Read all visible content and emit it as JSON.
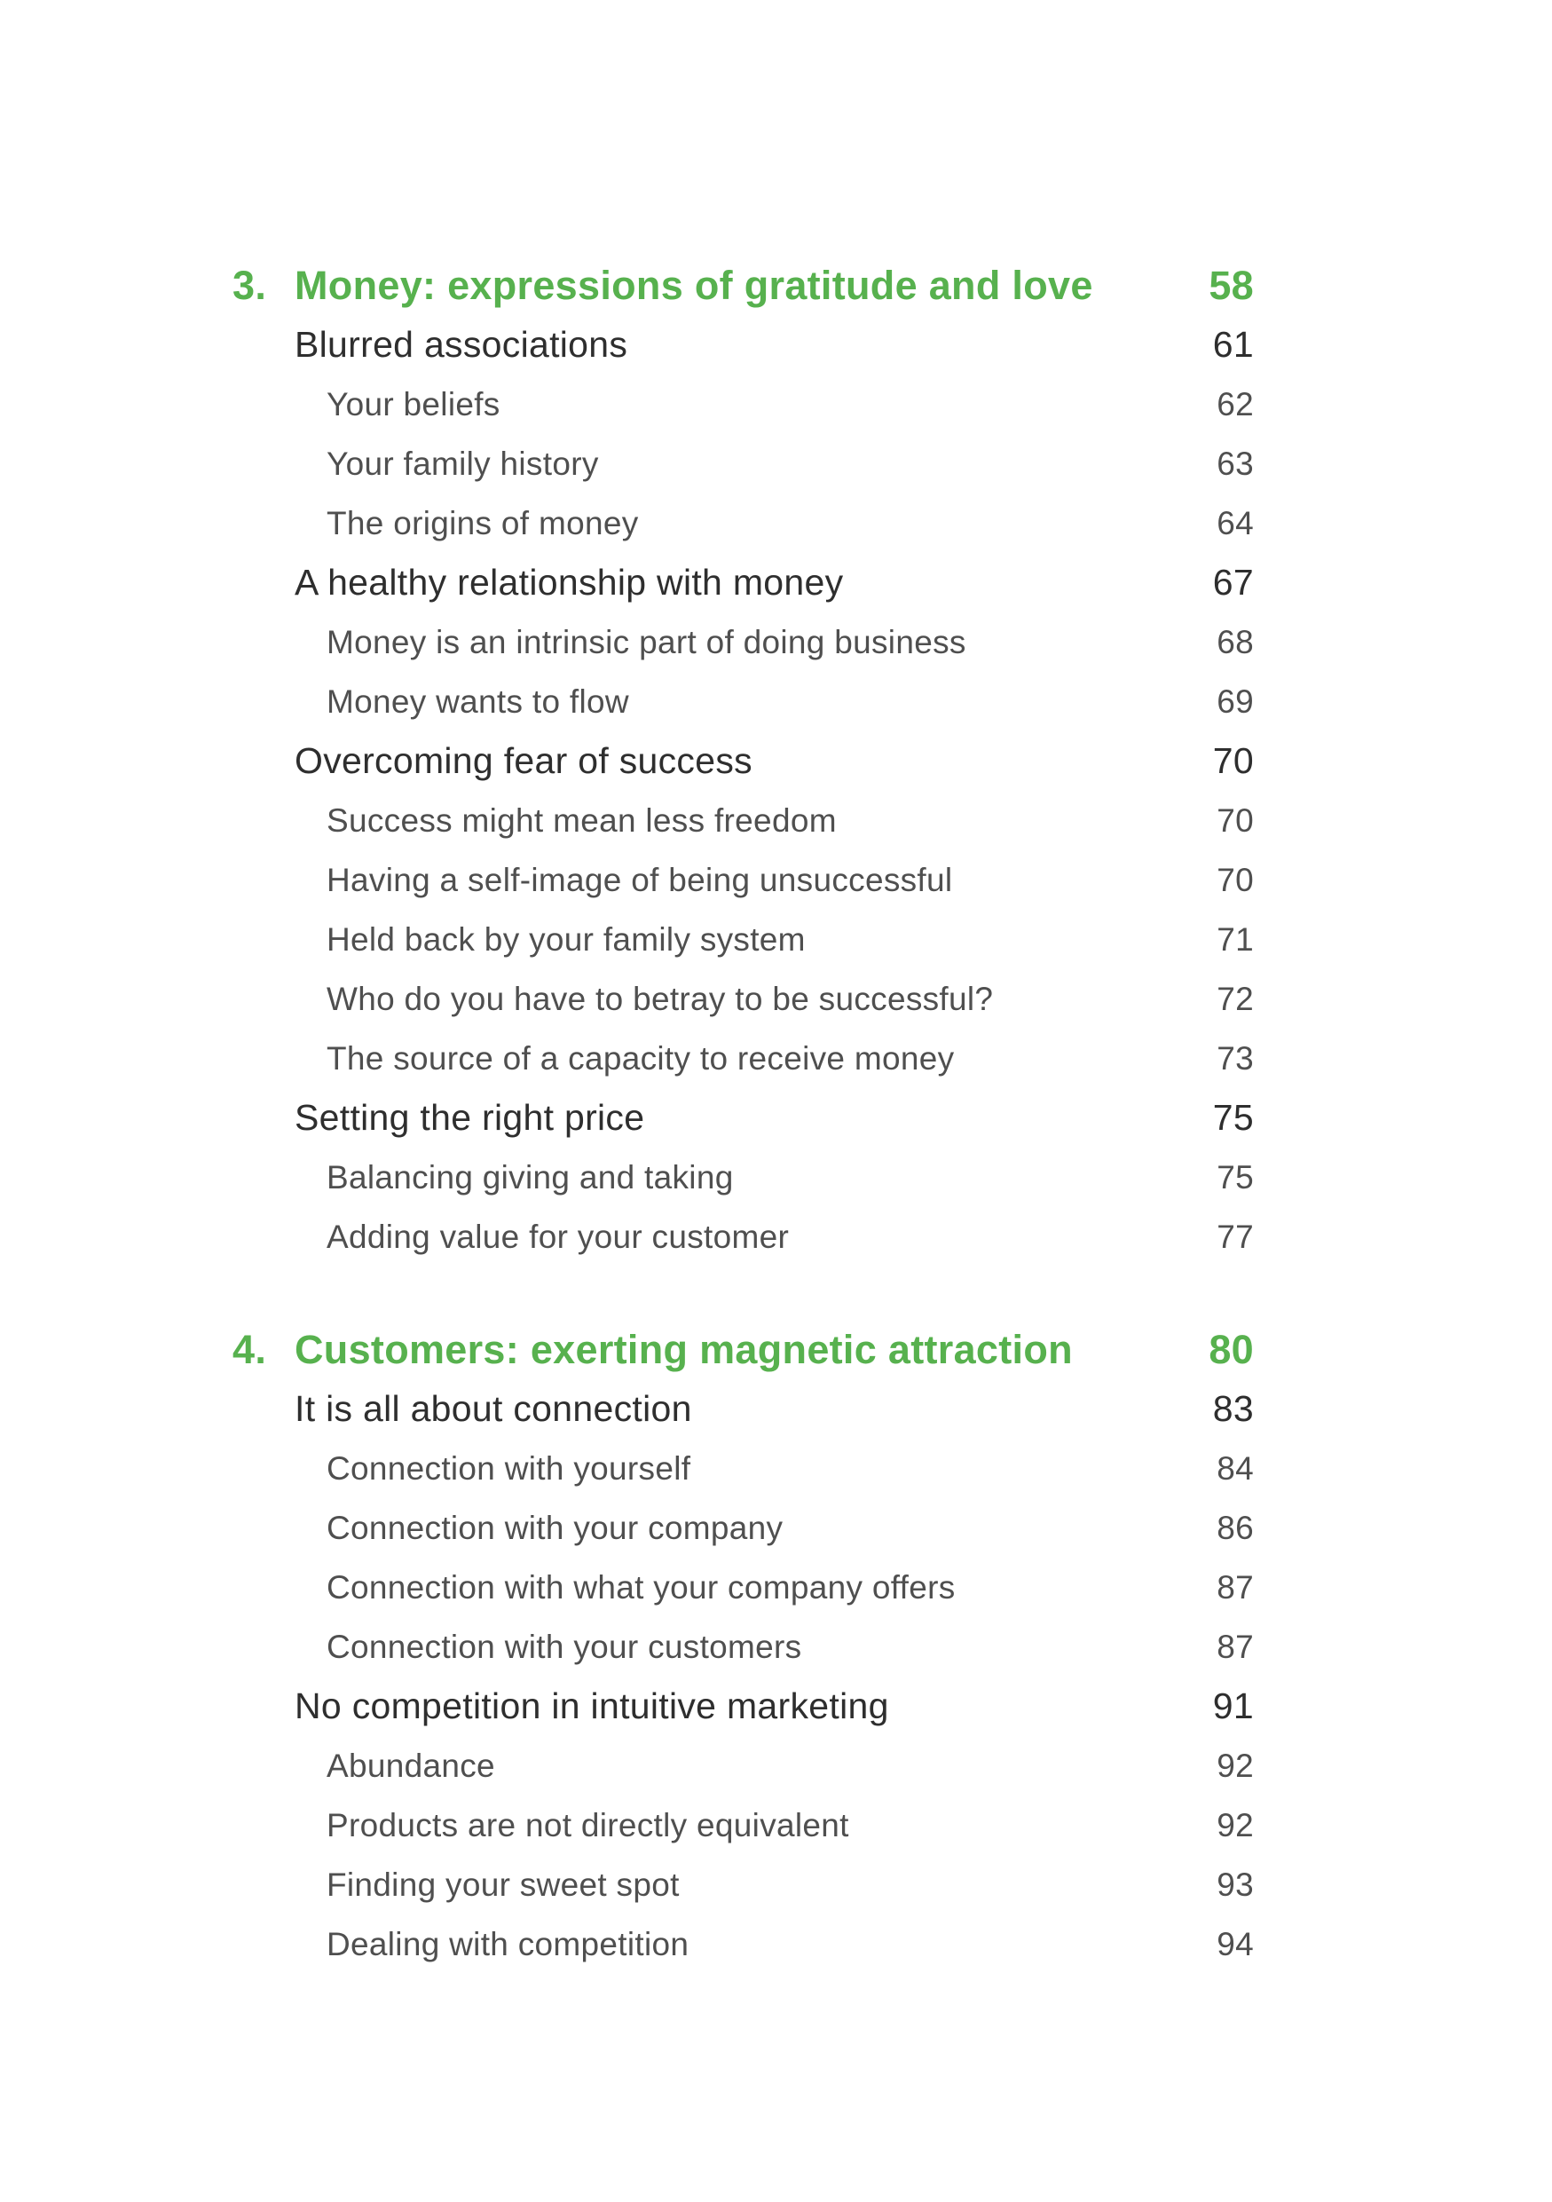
{
  "page": {
    "background": "#ffffff",
    "accent_green": "#57b14e",
    "text_primary": "#2e2e2e",
    "text_secondary": "#4f4f4f"
  },
  "toc": {
    "chapters": [
      {
        "number": "3.",
        "title": "Money: expressions of gratitude and love",
        "page": "58",
        "entries": [
          {
            "level": 2,
            "label": "Blurred associations",
            "page": "61"
          },
          {
            "level": 3,
            "label": "Your beliefs",
            "page": "62"
          },
          {
            "level": 3,
            "label": "Your family history",
            "page": "63"
          },
          {
            "level": 3,
            "label": "The origins of money",
            "page": "64"
          },
          {
            "level": 2,
            "label": "A healthy relationship with money",
            "page": "67"
          },
          {
            "level": 3,
            "label": "Money is an intrinsic part of doing business",
            "page": "68"
          },
          {
            "level": 3,
            "label": "Money wants to flow",
            "page": "69"
          },
          {
            "level": 2,
            "label": "Overcoming fear of success",
            "page": "70"
          },
          {
            "level": 3,
            "label": "Success might mean less freedom",
            "page": "70"
          },
          {
            "level": 3,
            "label": "Having a self-image of being unsuccessful",
            "page": "70"
          },
          {
            "level": 3,
            "label": "Held back by your family system",
            "page": "71"
          },
          {
            "level": 3,
            "label": "Who do you have to betray to be successful?",
            "page": "72"
          },
          {
            "level": 3,
            "label": "The source of a capacity to receive money",
            "page": "73"
          },
          {
            "level": 2,
            "label": "Setting the right price",
            "page": "75"
          },
          {
            "level": 3,
            "label": "Balancing giving and taking",
            "page": "75"
          },
          {
            "level": 3,
            "label": "Adding value for your customer",
            "page": "77"
          }
        ]
      },
      {
        "number": "4.",
        "title": "Customers: exerting magnetic attraction",
        "page": "80",
        "entries": [
          {
            "level": 2,
            "label": "It is all about connection",
            "page": "83"
          },
          {
            "level": 3,
            "label": "Connection with yourself",
            "page": "84"
          },
          {
            "level": 3,
            "label": "Connection with your company",
            "page": "86"
          },
          {
            "level": 3,
            "label": "Connection with what your company offers",
            "page": "87"
          },
          {
            "level": 3,
            "label": "Connection with your customers",
            "page": "87"
          },
          {
            "level": 2,
            "label": "No competition in intuitive marketing",
            "page": "91"
          },
          {
            "level": 3,
            "label": "Abundance",
            "page": "92"
          },
          {
            "level": 3,
            "label": "Products are not directly equivalent",
            "page": "92"
          },
          {
            "level": 3,
            "label": "Finding your sweet spot",
            "page": "93"
          },
          {
            "level": 3,
            "label": "Dealing with competition",
            "page": "94"
          }
        ]
      }
    ]
  }
}
